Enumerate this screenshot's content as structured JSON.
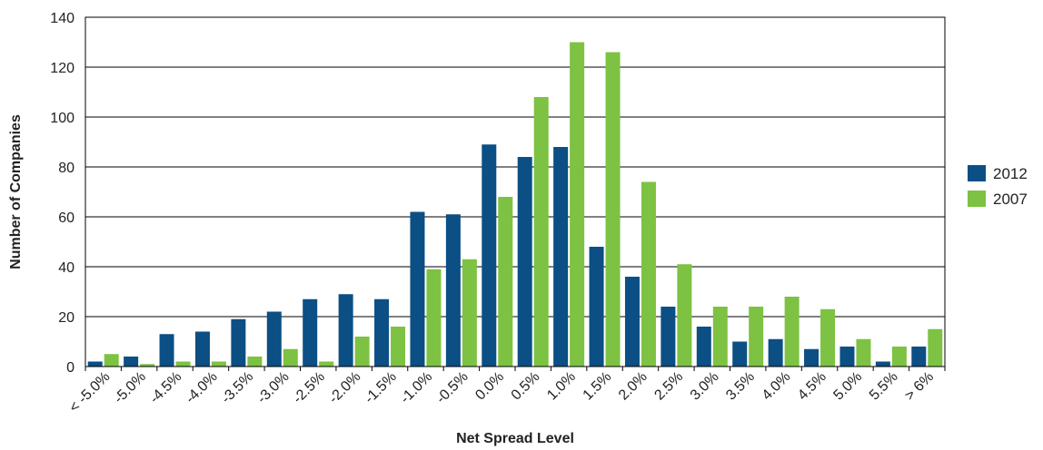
{
  "chart_data": {
    "type": "bar",
    "title": "",
    "xlabel": "Net Spread Level",
    "ylabel": "Number of Companies",
    "ylim": [
      0,
      140
    ],
    "yticks": [
      0,
      20,
      40,
      60,
      80,
      100,
      120,
      140
    ],
    "grid": true,
    "legend_position": "right",
    "categories": [
      "< -5.0%",
      "-5.0%",
      "-4.5%",
      "-4.0%",
      "-3.5%",
      "-3.0%",
      "-2.5%",
      "-2.0%",
      "-1.5%",
      "-1.0%",
      "-0.5%",
      "0.0%",
      "0.5%",
      "1.0%",
      "1.5%",
      "2.0%",
      "2.5%",
      "3.0%",
      "3.5%",
      "4.0%",
      "4.5%",
      "5.0%",
      "5.5%",
      "> 6%"
    ],
    "series": [
      {
        "name": "2012",
        "color": "#0b4f84",
        "values": [
          2,
          4,
          13,
          14,
          19,
          22,
          27,
          29,
          27,
          62,
          61,
          89,
          84,
          88,
          48,
          36,
          24,
          16,
          10,
          11,
          7,
          8,
          2,
          8
        ]
      },
      {
        "name": "2007",
        "color": "#7dc242",
        "values": [
          5,
          1,
          2,
          2,
          4,
          7,
          2,
          12,
          16,
          39,
          43,
          68,
          108,
          130,
          126,
          74,
          41,
          24,
          24,
          28,
          23,
          11,
          8,
          15
        ]
      }
    ]
  }
}
